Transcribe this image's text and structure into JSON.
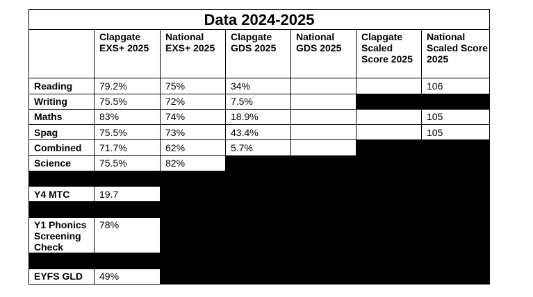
{
  "title": "Data 2024-2025",
  "headers": [
    "Clapgate EXS+ 2025",
    "National EXS+ 2025",
    "Clapgate GDS 2025",
    "National GDS 2025",
    "Clapgate Scaled Score 2025",
    "National Scaled Score 2025"
  ],
  "rows": {
    "reading": {
      "label": "Reading",
      "values": [
        "79.2%",
        "75%",
        "34%",
        "",
        "",
        "106"
      ]
    },
    "writing": {
      "label": "Writing",
      "values": [
        "75.5%",
        "72%",
        "7.5%",
        ""
      ]
    },
    "maths": {
      "label": "Maths",
      "values": [
        "83%",
        "74%",
        "18.9%",
        "",
        "",
        "105"
      ]
    },
    "spag": {
      "label": "Spag",
      "values": [
        "75.5%",
        "73%",
        "43.4%",
        "",
        "",
        "105"
      ]
    },
    "combined": {
      "label": "Combined",
      "values": [
        "71.7%",
        "62%",
        "5.7%",
        ""
      ]
    },
    "science": {
      "label": "Science",
      "values": [
        "75.5%",
        "82%"
      ]
    }
  },
  "extra_rows": {
    "y4_mtc": {
      "label": "Y4 MTC",
      "value": "19.7"
    },
    "y1_phonics": {
      "label": "Y1 Phonics Screening Check",
      "value": "78%"
    },
    "eyfs_gld": {
      "label": "EYFS GLD",
      "value": "49%"
    }
  }
}
